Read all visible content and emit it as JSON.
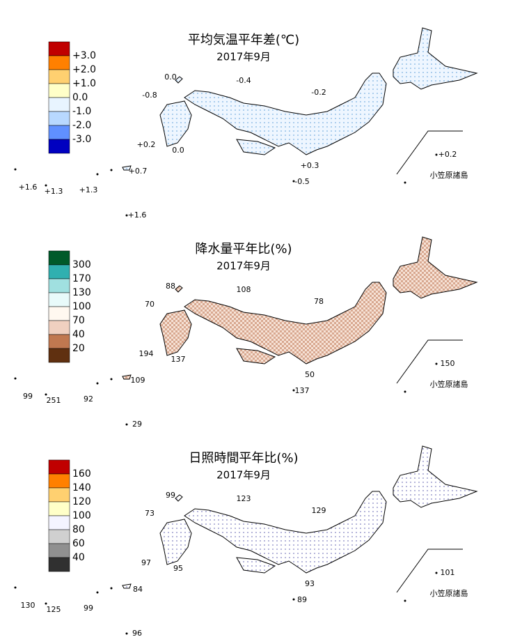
{
  "panels": [
    {
      "title": "平均気温平年差(℃)",
      "subtitle": "2017年9月",
      "legend": {
        "labels": [
          "+3.0",
          "+2.0",
          "+1.0",
          "0.0",
          "-1.0",
          "-2.0",
          "-3.0"
        ],
        "colors": [
          "#c00000",
          "#ff8000",
          "#ffd070",
          "#ffffc8",
          "#e8f4ff",
          "#b8d8ff",
          "#6090ff",
          "#0000c0"
        ]
      },
      "stations": [
        "0.0",
        "-0.4",
        "-0.8",
        "-0.2",
        "+0.2",
        "0.0",
        "+0.3",
        "-0.5",
        "+0.7",
        "+1.6",
        "+1.3",
        "+1.3",
        "+1.6",
        "+0.2"
      ],
      "inset_label": "小笠原諸島"
    },
    {
      "title": "降水量平年比(%)",
      "subtitle": "2017年9月",
      "legend": {
        "labels": [
          "300",
          "170",
          "130",
          "100",
          "70",
          "40",
          "20"
        ],
        "colors": [
          "#005a2a",
          "#30b0b0",
          "#a0e0e0",
          "#e8fafa",
          "#fff8f0",
          "#f0d0c0",
          "#c07850",
          "#603010"
        ]
      },
      "stations": [
        "88",
        "108",
        "70",
        "78",
        "194",
        "137",
        "50",
        "137",
        "109",
        "99",
        "251",
        "92",
        "29",
        "150"
      ],
      "inset_label": "小笠原諸島"
    },
    {
      "title": "日照時間平年比(%)",
      "subtitle": "2017年9月",
      "legend": {
        "labels": [
          "160",
          "140",
          "120",
          "100",
          "80",
          "60",
          "40"
        ],
        "colors": [
          "#c00000",
          "#ff8000",
          "#ffd070",
          "#ffffc8",
          "#f4f4ff",
          "#d0d0d0",
          "#909090",
          "#303030"
        ]
      },
      "stations": [
        "99",
        "123",
        "73",
        "129",
        "97",
        "95",
        "93",
        "89",
        "84",
        "130",
        "125",
        "99",
        "96",
        "101"
      ],
      "inset_label": "小笠原諸島"
    }
  ]
}
